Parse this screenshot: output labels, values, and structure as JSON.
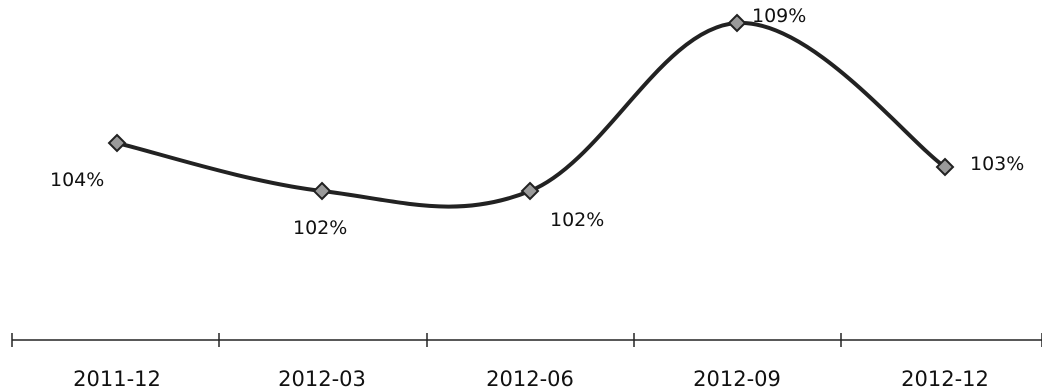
{
  "chart_data": {
    "type": "line",
    "categories": [
      "2011-12",
      "2012-03",
      "2012-06",
      "2012-09",
      "2012-12"
    ],
    "series": [
      {
        "values": [
          104,
          102,
          102,
          109,
          103
        ],
        "labels": [
          "104%",
          "102%",
          "102%",
          "109%",
          "103%"
        ]
      }
    ],
    "ylim": [
      97,
      110
    ],
    "smooth": true,
    "marker": "diamond",
    "legend": "none",
    "grid": false
  },
  "colors": {
    "line": "#222222",
    "marker_fill": "#9a9a9a",
    "axis": "#222222"
  }
}
